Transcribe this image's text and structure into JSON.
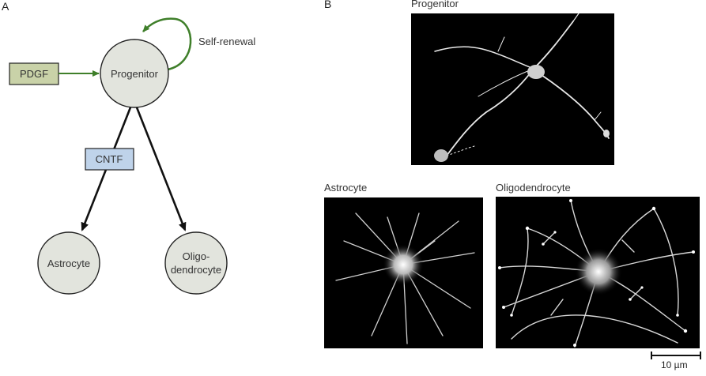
{
  "panels": {
    "a_label": "A",
    "b_label": "B"
  },
  "diagram": {
    "nodes": {
      "progenitor": "Progenitor",
      "astrocyte": "Astrocyte",
      "oligo_line1": "Oligo-",
      "oligo_line2": "dendrocyte"
    },
    "boxes": {
      "pdgf": "PDGF",
      "cntf": "CNTF"
    },
    "self_renewal": "Self-renewal",
    "colors": {
      "node_fill": "#e2e4dd",
      "pdgf_fill": "#c9d2a8",
      "cntf_fill": "#bfd3ea",
      "arrow_green": "#3f7f2a",
      "arrow_black": "#111111"
    }
  },
  "micrographs": {
    "progenitor_title": "Progenitor",
    "astrocyte_title": "Astrocyte",
    "oligodendrocyte_title": "Oligodendrocyte"
  },
  "scale_bar": {
    "label": "10 µm"
  }
}
